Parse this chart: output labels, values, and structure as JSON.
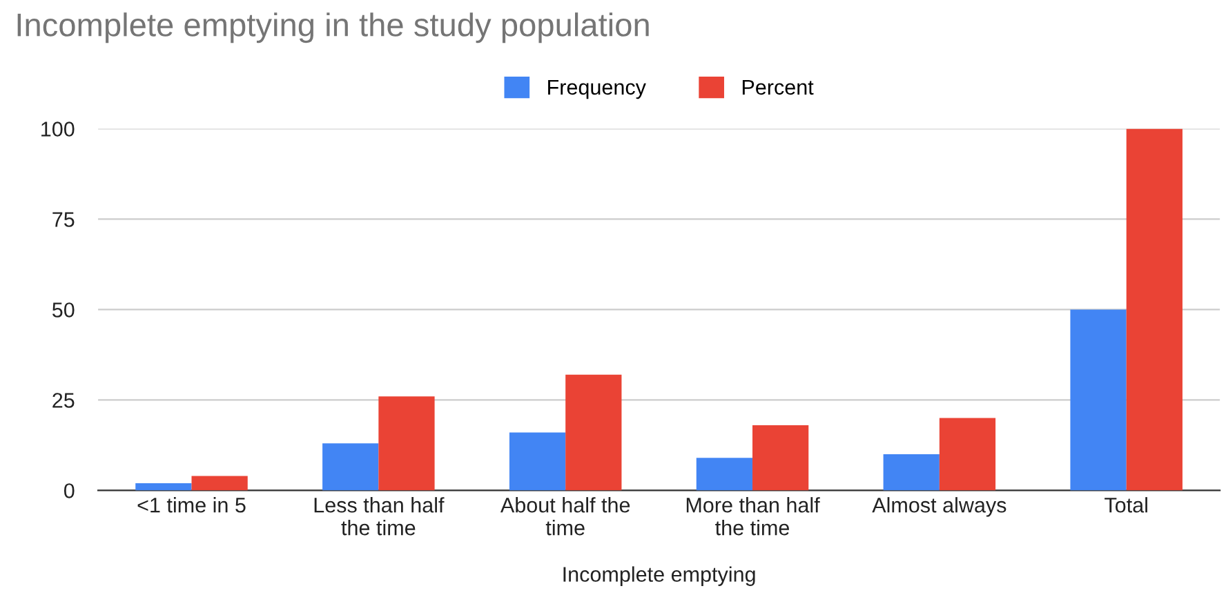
{
  "chart_data": {
    "type": "bar",
    "title": "Incomplete emptying in the study population",
    "xlabel": "Incomplete emptying",
    "categories": [
      "<1 time in 5",
      "Less than half\nthe time",
      "About half the\ntime",
      "More than half\nthe time",
      "Almost always",
      "Total"
    ],
    "series": [
      {
        "name": "Frequency",
        "color": "#4285f4",
        "values": [
          2,
          13,
          16,
          9,
          10,
          50
        ]
      },
      {
        "name": "Percent",
        "color": "#ea4335",
        "values": [
          4,
          26,
          32,
          18,
          20,
          100
        ]
      }
    ],
    "ylim": [
      0,
      100
    ],
    "yticks": [
      0,
      25,
      50,
      75,
      100
    ],
    "grid": "y",
    "legend": "top"
  }
}
